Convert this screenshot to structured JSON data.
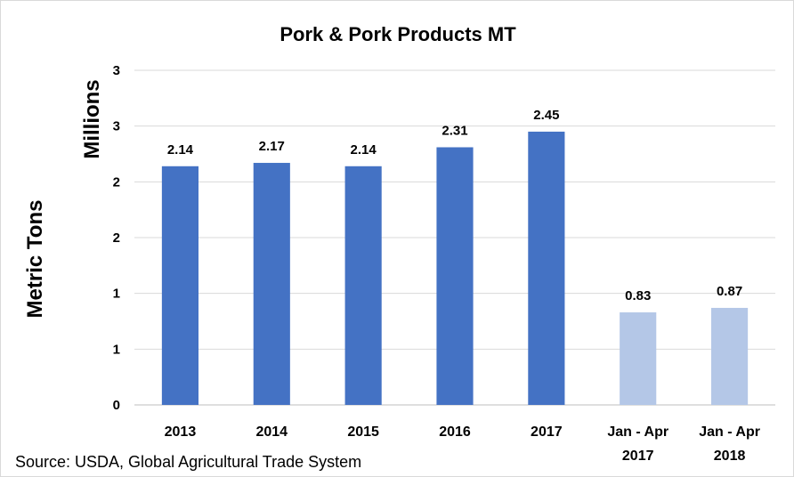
{
  "chart_data": {
    "type": "bar",
    "title": "Pork & Pork Products MT",
    "ylabel": "Metric Tons",
    "units_label": "Millions",
    "source": "Source: USDA, Global Agricultural Trade System",
    "categories": [
      [
        "2013"
      ],
      [
        "2014"
      ],
      [
        "2015"
      ],
      [
        "2016"
      ],
      [
        "2017"
      ],
      [
        "Jan - Apr",
        "2017"
      ],
      [
        "Jan - Apr",
        "2018"
      ]
    ],
    "values": [
      2.14,
      2.17,
      2.14,
      2.31,
      2.45,
      0.83,
      0.87
    ],
    "data_labels": [
      "2.14",
      "2.17",
      "2.14",
      "2.31",
      "2.45",
      "0.83",
      "0.87"
    ],
    "bar_colors": [
      "#4472c4",
      "#4472c4",
      "#4472c4",
      "#4472c4",
      "#4472c4",
      "#b4c7e7",
      "#b4c7e7"
    ],
    "ylim": [
      0,
      3
    ],
    "yticks": [
      0,
      0.5,
      1,
      1.5,
      2,
      2.5,
      3
    ],
    "ytick_labels": [
      "0",
      "1",
      "1",
      "2",
      "2",
      "3",
      "3"
    ],
    "grid": true,
    "legend": "none"
  }
}
